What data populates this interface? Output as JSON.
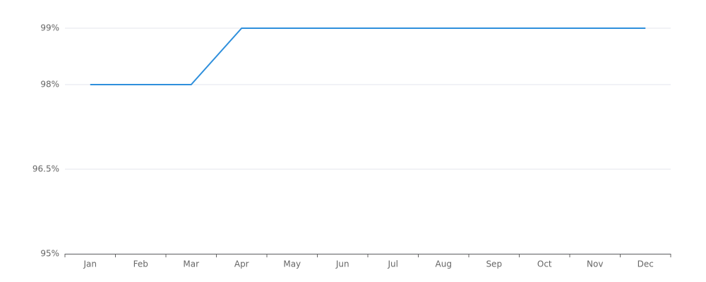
{
  "chart_data": {
    "type": "line",
    "categories": [
      "Jan",
      "Feb",
      "Mar",
      "Apr",
      "May",
      "Jun",
      "Jul",
      "Aug",
      "Sep",
      "Oct",
      "Nov",
      "Dec"
    ],
    "values": [
      98,
      98,
      98,
      99,
      99,
      99,
      99,
      99,
      99,
      99,
      99,
      99
    ],
    "color": "#2e8fdc",
    "ylim": [
      95,
      99
    ],
    "yticks": [
      {
        "value": 95,
        "label": "95%"
      },
      {
        "value": 96.5,
        "label": "96.5%"
      },
      {
        "value": 98,
        "label": "98%"
      },
      {
        "value": 99,
        "label": "99%"
      }
    ],
    "grid": true
  }
}
